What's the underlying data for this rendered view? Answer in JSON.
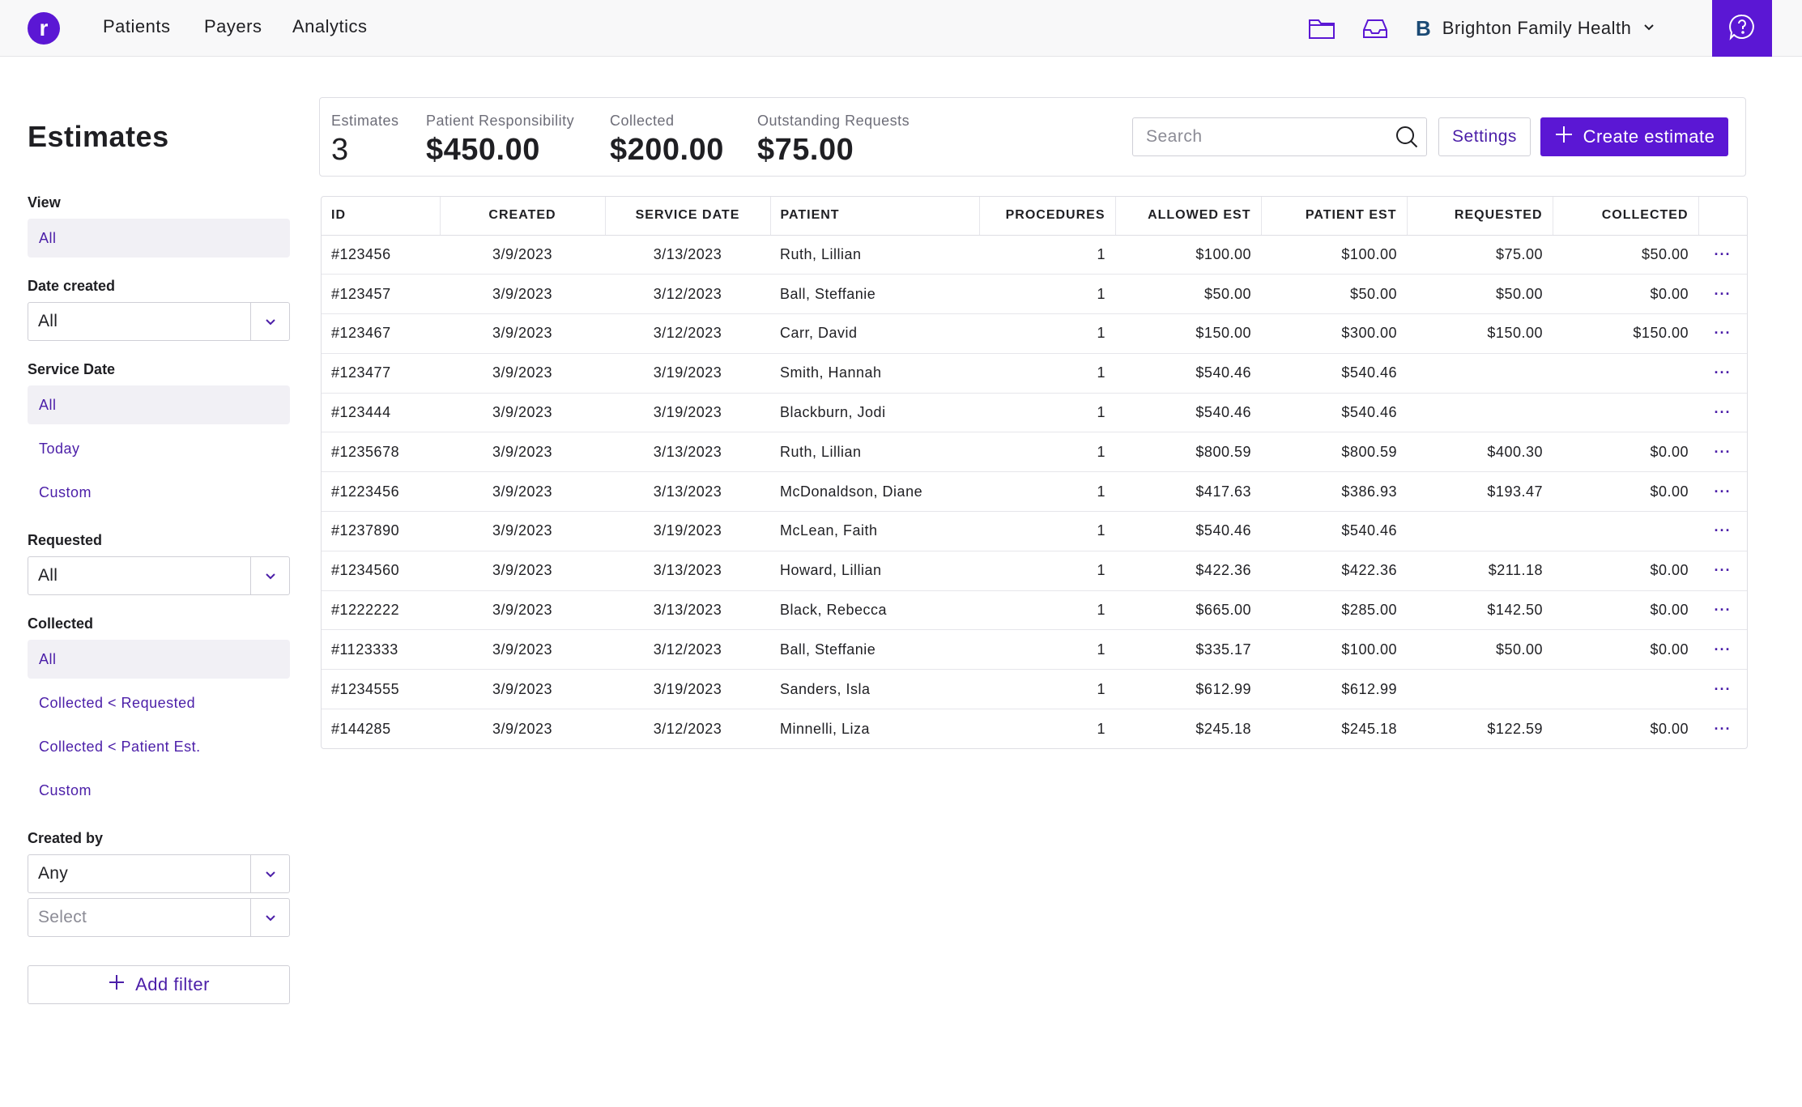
{
  "nav": {
    "logo_letter": "r",
    "links": [
      "Patients",
      "Payers",
      "Analytics"
    ],
    "org_badge": "B",
    "org_name": "Brighton Family Health",
    "icons": [
      "folder-icon",
      "inbox-icon",
      "chevron-down-icon",
      "help-icon"
    ]
  },
  "sidebar": {
    "title": "Estimates",
    "view": {
      "label": "View",
      "options": [
        "All"
      ],
      "selected": "All"
    },
    "date_created": {
      "label": "Date created",
      "value": "All"
    },
    "service_date": {
      "label": "Service Date",
      "options": [
        "All",
        "Today",
        "Custom"
      ],
      "selected": "All"
    },
    "requested": {
      "label": "Requested",
      "value": "All"
    },
    "collected": {
      "label": "Collected",
      "options": [
        "All",
        "Collected < Requested",
        "Collected < Patient Est.",
        "Custom"
      ],
      "selected": "All"
    },
    "created_by": {
      "label": "Created by",
      "value": "Any",
      "select_placeholder": "Select"
    },
    "add_filter": "Add filter"
  },
  "summary": {
    "estimates_label": "Estimates",
    "estimates_value": "3",
    "patient_resp_label": "Patient Responsibility",
    "patient_resp_value": "$450.00",
    "collected_label": "Collected",
    "collected_value": "$200.00",
    "outstanding_label": "Outstanding Requests",
    "outstanding_value": "$75.00",
    "search_placeholder": "Search",
    "settings_label": "Settings",
    "create_label": "Create estimate"
  },
  "colors": {
    "accent": "#5b17d4",
    "link": "#4b1ea8",
    "active_bg": "#f1f0f5",
    "border": "#dedee4"
  },
  "table": {
    "columns": [
      "ID",
      "CREATED",
      "SERVICE DATE",
      "PATIENT",
      "PROCEDURES",
      "ALLOWED EST",
      "PATIENT EST",
      "REQUESTED",
      "COLLECTED"
    ],
    "rows": [
      [
        "#123456",
        "3/9/2023",
        "3/13/2023",
        "Ruth, Lillian",
        "1",
        "$100.00",
        "$100.00",
        "$75.00",
        "$50.00"
      ],
      [
        "#123457",
        "3/9/2023",
        "3/12/2023",
        "Ball, Steffanie",
        "1",
        "$50.00",
        "$50.00",
        "$50.00",
        "$0.00"
      ],
      [
        "#123467",
        "3/9/2023",
        "3/12/2023",
        "Carr, David",
        "1",
        "$150.00",
        "$300.00",
        "$150.00",
        "$150.00"
      ],
      [
        "#123477",
        "3/9/2023",
        "3/19/2023",
        "Smith, Hannah",
        "1",
        "$540.46",
        "$540.46",
        "",
        ""
      ],
      [
        "#123444",
        "3/9/2023",
        "3/19/2023",
        "Blackburn, Jodi",
        "1",
        "$540.46",
        "$540.46",
        "",
        ""
      ],
      [
        "#1235678",
        "3/9/2023",
        "3/13/2023",
        "Ruth, Lillian",
        "1",
        "$800.59",
        "$800.59",
        "$400.30",
        "$0.00"
      ],
      [
        "#1223456",
        "3/9/2023",
        "3/13/2023",
        "McDonaldson, Diane",
        "1",
        "$417.63",
        "$386.93",
        "$193.47",
        "$0.00"
      ],
      [
        "#1237890",
        "3/9/2023",
        "3/19/2023",
        "McLean, Faith",
        "1",
        "$540.46",
        "$540.46",
        "",
        ""
      ],
      [
        "#1234560",
        "3/9/2023",
        "3/13/2023",
        "Howard, Lillian",
        "1",
        "$422.36",
        "$422.36",
        "$211.18",
        "$0.00"
      ],
      [
        "#1222222",
        "3/9/2023",
        "3/13/2023",
        "Black, Rebecca",
        "1",
        "$665.00",
        "$285.00",
        "$142.50",
        "$0.00"
      ],
      [
        "#1123333",
        "3/9/2023",
        "3/12/2023",
        "Ball, Steffanie",
        "1",
        "$335.17",
        "$100.00",
        "$50.00",
        "$0.00"
      ],
      [
        "#1234555",
        "3/9/2023",
        "3/19/2023",
        "Sanders, Isla",
        "1",
        "$612.99",
        "$612.99",
        "",
        ""
      ],
      [
        "#144285",
        "3/9/2023",
        "3/12/2023",
        "Minnelli, Liza",
        "1",
        "$245.18",
        "$245.18",
        "$122.59",
        "$0.00"
      ]
    ],
    "row_action": "···"
  }
}
